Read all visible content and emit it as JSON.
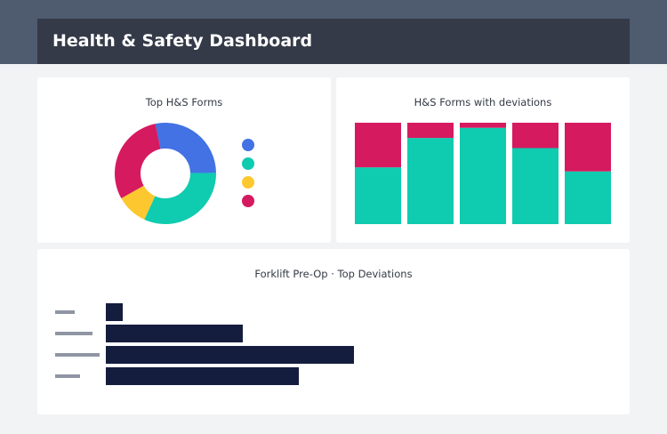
{
  "header": {
    "title": "Health & Safety Dashboard"
  },
  "colors": {
    "blue": "#4272e4",
    "teal": "#0fcbb0",
    "yellow": "#fdc82f",
    "red": "#d61a5f",
    "navy": "#141d3d",
    "label_gray": "#8f95a3"
  },
  "chart_data": [
    {
      "type": "pie",
      "title": "Top H&S Forms",
      "donut": true,
      "values": [
        28,
        32,
        10,
        30
      ],
      "colors": [
        "#4272e4",
        "#0fcbb0",
        "#fdc82f",
        "#d61a5f"
      ],
      "legend": "right"
    },
    {
      "type": "bar",
      "stacked": true,
      "title": "H&S Forms with deviations",
      "ylim": [
        0,
        100
      ],
      "series": [
        {
          "values": [
            56,
            85,
            95,
            75,
            52
          ],
          "color": "#0fcbb0"
        },
        {
          "values": [
            44,
            15,
            5,
            25,
            48
          ],
          "color": "#d61a5f"
        }
      ]
    },
    {
      "type": "bar",
      "orientation": "horizontal",
      "title": "Forklift Pre-Op · Top Deviations",
      "values": [
        19,
        154,
        279,
        217
      ],
      "color": "#141d3d"
    }
  ]
}
